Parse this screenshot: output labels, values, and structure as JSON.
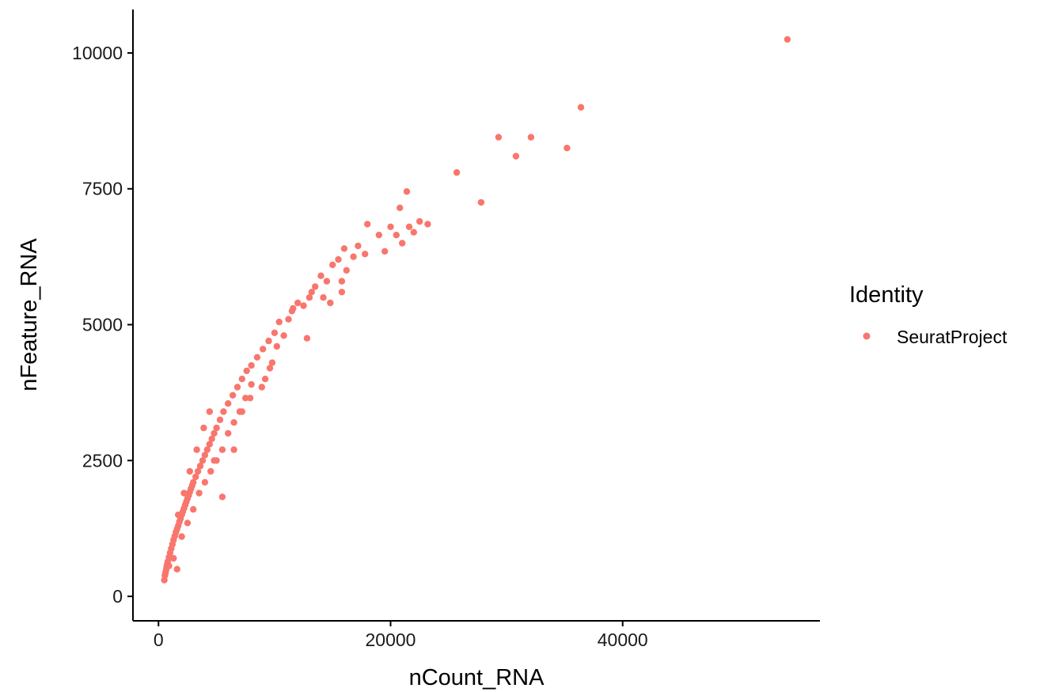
{
  "chart_data": {
    "type": "scatter",
    "xlabel": "nCount_RNA",
    "ylabel": "nFeature_RNA",
    "xlim": [
      -2200,
      57000
    ],
    "ylim": [
      -450,
      10800
    ],
    "xticks": [
      0,
      20000,
      40000
    ],
    "yticks": [
      0,
      2500,
      5000,
      7500,
      10000
    ],
    "xtick_labels": [
      "0",
      "20000",
      "40000"
    ],
    "ytick_labels": [
      "0",
      "2500",
      "5000",
      "7500",
      "10000"
    ],
    "grid": false,
    "legend": {
      "title": "Identity",
      "placement": "right",
      "entries": [
        "SeuratProject"
      ]
    },
    "colors": {
      "SeuratProject": "#F8766D"
    },
    "series": [
      {
        "name": "SeuratProject",
        "points": [
          [
            500,
            300
          ],
          [
            550,
            380
          ],
          [
            600,
            430
          ],
          [
            650,
            480
          ],
          [
            700,
            540
          ],
          [
            750,
            590
          ],
          [
            800,
            640
          ],
          [
            900,
            720
          ],
          [
            1000,
            800
          ],
          [
            1100,
            880
          ],
          [
            1200,
            960
          ],
          [
            1300,
            1040
          ],
          [
            1400,
            1110
          ],
          [
            1500,
            1180
          ],
          [
            1600,
            1240
          ],
          [
            1700,
            1300
          ],
          [
            1800,
            1370
          ],
          [
            1900,
            1430
          ],
          [
            2000,
            1500
          ],
          [
            2100,
            1560
          ],
          [
            2200,
            1620
          ],
          [
            2300,
            1680
          ],
          [
            2400,
            1740
          ],
          [
            2500,
            1800
          ],
          [
            2600,
            1860
          ],
          [
            2700,
            1920
          ],
          [
            2800,
            1980
          ],
          [
            2900,
            2040
          ],
          [
            3000,
            2100
          ],
          [
            3200,
            2200
          ],
          [
            3400,
            2300
          ],
          [
            3600,
            2400
          ],
          [
            3800,
            2500
          ],
          [
            4000,
            2600
          ],
          [
            4200,
            2700
          ],
          [
            4400,
            2800
          ],
          [
            4600,
            2900
          ],
          [
            4800,
            3000
          ],
          [
            5000,
            3100
          ],
          [
            5300,
            3250
          ],
          [
            5600,
            3400
          ],
          [
            6000,
            3550
          ],
          [
            6400,
            3700
          ],
          [
            6800,
            3850
          ],
          [
            7200,
            4000
          ],
          [
            7600,
            4150
          ],
          [
            8000,
            4250
          ],
          [
            8500,
            4400
          ],
          [
            9000,
            4550
          ],
          [
            9500,
            4700
          ],
          [
            10000,
            4850
          ],
          [
            1600,
            500
          ],
          [
            900,
            560
          ],
          [
            1300,
            700
          ],
          [
            2000,
            1100
          ],
          [
            2500,
            1350
          ],
          [
            3000,
            1600
          ],
          [
            3500,
            1900
          ],
          [
            4000,
            2100
          ],
          [
            4500,
            2300
          ],
          [
            5000,
            2500
          ],
          [
            5500,
            2700
          ],
          [
            6000,
            3000
          ],
          [
            6500,
            3200
          ],
          [
            7000,
            3400
          ],
          [
            7500,
            3650
          ],
          [
            8000,
            3900
          ],
          [
            1700,
            1500
          ],
          [
            2200,
            1900
          ],
          [
            2700,
            2300
          ],
          [
            3300,
            2700
          ],
          [
            3900,
            3100
          ],
          [
            4400,
            3400
          ],
          [
            5500,
            1830
          ],
          [
            4800,
            2500
          ],
          [
            6500,
            2700
          ],
          [
            7200,
            3400
          ],
          [
            7900,
            3650
          ],
          [
            8900,
            3850
          ],
          [
            9200,
            4000
          ],
          [
            9800,
            4300
          ],
          [
            10200,
            4600
          ],
          [
            10800,
            4800
          ],
          [
            11200,
            5100
          ],
          [
            11600,
            5300
          ],
          [
            12000,
            5400
          ],
          [
            12500,
            5350
          ],
          [
            13000,
            5500
          ],
          [
            13500,
            5700
          ],
          [
            14000,
            5900
          ],
          [
            14500,
            5800
          ],
          [
            15000,
            6100
          ],
          [
            15500,
            6200
          ],
          [
            16000,
            6400
          ],
          [
            16200,
            6000
          ],
          [
            16800,
            6250
          ],
          [
            17200,
            6450
          ],
          [
            17800,
            6300
          ],
          [
            18000,
            6850
          ],
          [
            19000,
            6650
          ],
          [
            19500,
            6350
          ],
          [
            20000,
            6800
          ],
          [
            20500,
            6650
          ],
          [
            20800,
            7150
          ],
          [
            21000,
            6500
          ],
          [
            21400,
            7450
          ],
          [
            21600,
            6800
          ],
          [
            22000,
            6700
          ],
          [
            22500,
            6900
          ],
          [
            23200,
            6850
          ],
          [
            12800,
            4750
          ],
          [
            11500,
            5250
          ],
          [
            10400,
            5050
          ],
          [
            9600,
            4200
          ],
          [
            13200,
            5600
          ],
          [
            14200,
            5500
          ],
          [
            15800,
            5600
          ],
          [
            15800,
            5800
          ],
          [
            14800,
            5400
          ],
          [
            25700,
            7800
          ],
          [
            27800,
            7250
          ],
          [
            29300,
            8450
          ],
          [
            30800,
            8100
          ],
          [
            32100,
            8450
          ],
          [
            35200,
            8250
          ],
          [
            36400,
            9000
          ],
          [
            54200,
            10250
          ]
        ]
      }
    ]
  }
}
